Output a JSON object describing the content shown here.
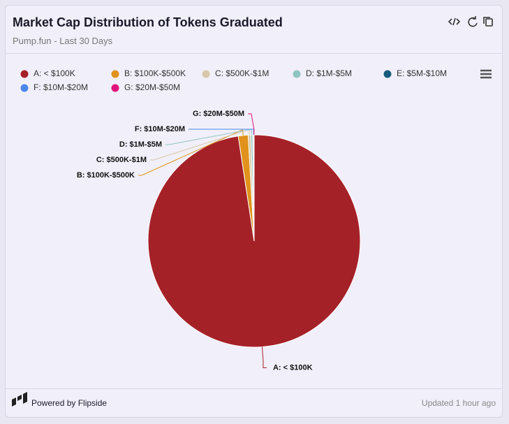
{
  "chart_data": {
    "type": "pie",
    "title": "Market Cap Distribution of Tokens Graduated",
    "subtitle": "Pump.fun - Last 30 Days",
    "categories": [
      "A: < $100K",
      "B: $100K-$500K",
      "C: $500K-$1M",
      "D: $1M-$5M",
      "E: $5M-$10M",
      "F: $10M-$20M",
      "G: $20M-$50M"
    ],
    "values": [
      97.6,
      1.5,
      0.4,
      0.3,
      0.1,
      0.06,
      0.04
    ],
    "colors": [
      "#a52128",
      "#e0921c",
      "#d8c8a8",
      "#8fc4c0",
      "#165c7c",
      "#4a88e8",
      "#e0147c"
    ]
  },
  "footer": {
    "powered_by": "Powered by Flipside",
    "updated": "Updated 1 hour ago"
  }
}
